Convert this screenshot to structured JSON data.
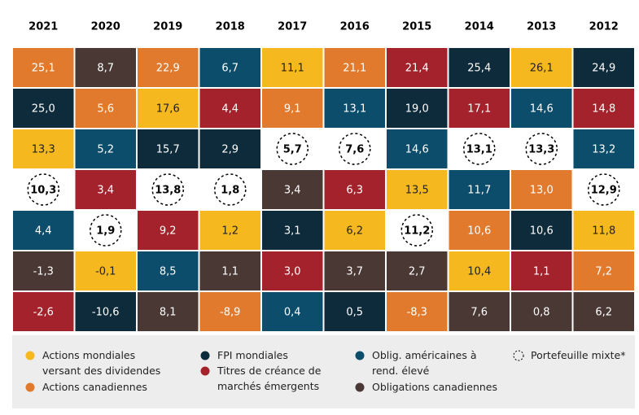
{
  "chart_data": {
    "type": "quilt",
    "categories": [
      "2021",
      "2020",
      "2019",
      "2018",
      "2017",
      "2016",
      "2015",
      "2014",
      "2013",
      "2012"
    ],
    "series": [
      {
        "name": "Actions mondiales versant des dividendes",
        "color": "#f5b81f",
        "label_color": "#222222",
        "values": [
          13.3,
          -0.1,
          17.6,
          1.2,
          11.1,
          6.2,
          13.5,
          10.4,
          26.1,
          11.8
        ],
        "value_labels": [
          "13,3",
          "-0,1",
          "17,6",
          "1,2",
          "11,1",
          "6,2",
          "13,5",
          "10,4",
          "26,1",
          "11,8"
        ]
      },
      {
        "name": "Actions canadiennes",
        "color": "#e17a2d",
        "label_color": "#ffffff",
        "values": [
          25.1,
          5.6,
          22.9,
          -8.9,
          9.1,
          21.1,
          -8.3,
          10.6,
          13.0,
          7.2
        ],
        "value_labels": [
          "25,1",
          "5,6",
          "22,9",
          "-8,9",
          "9,1",
          "21,1",
          "-8,3",
          "10,6",
          "13,0",
          "7,2"
        ]
      },
      {
        "name": "FPI mondiales",
        "color": "#0e2b3b",
        "label_color": "#ffffff",
        "values": [
          25.0,
          -10.6,
          15.7,
          2.9,
          3.1,
          0.5,
          19.0,
          25.4,
          10.6,
          24.9
        ],
        "value_labels": [
          "25,0",
          "-10,6",
          "15,7",
          "2,9",
          "3,1",
          "0,5",
          "19,0",
          "25,4",
          "10,6",
          "24,9"
        ]
      },
      {
        "name": "Titres de créance de marchés émergents",
        "color": "#a4222b",
        "label_color": "#ffffff",
        "values": [
          -2.6,
          3.4,
          9.2,
          4.4,
          3.0,
          6.3,
          21.4,
          17.1,
          1.1,
          14.8
        ],
        "value_labels": [
          "-2,6",
          "3,4",
          "9,2",
          "4,4",
          "3,0",
          "6,3",
          "21,4",
          "17,1",
          "1,1",
          "14,8"
        ]
      },
      {
        "name": "Oblig. américaines à rend. élevé",
        "color": "#0b4d6b",
        "label_color": "#ffffff",
        "values": [
          4.4,
          5.2,
          8.5,
          6.7,
          0.4,
          13.1,
          14.6,
          11.7,
          14.6,
          13.2
        ],
        "value_labels": [
          "4,4",
          "5,2",
          "8,5",
          "6,7",
          "0,4",
          "13,1",
          "14,6",
          "11,7",
          "14,6",
          "13,2"
        ]
      },
      {
        "name": "Obligations canadiennes",
        "color": "#493834",
        "label_color": "#ffffff",
        "values": [
          -1.3,
          8.7,
          8.1,
          1.1,
          3.4,
          3.7,
          2.7,
          7.6,
          0.8,
          6.2
        ],
        "value_labels": [
          "-1,3",
          "8,7",
          "8,1",
          "1,1",
          "3,4",
          "3,7",
          "2,7",
          "7,6",
          "0,8",
          "6,2"
        ]
      },
      {
        "name": "Portefeuille mixte*",
        "color": "#ffffff",
        "label_color": "#000000",
        "dashed": true,
        "values": [
          10.3,
          1.9,
          13.8,
          1.8,
          5.7,
          7.6,
          11.2,
          13.1,
          13.3,
          12.9
        ],
        "value_labels": [
          "10,3",
          "1,9",
          "13,8",
          "1,8",
          "5,7",
          "7,6",
          "11,2",
          "13,1",
          "13,3",
          "12,9"
        ]
      }
    ]
  }
}
